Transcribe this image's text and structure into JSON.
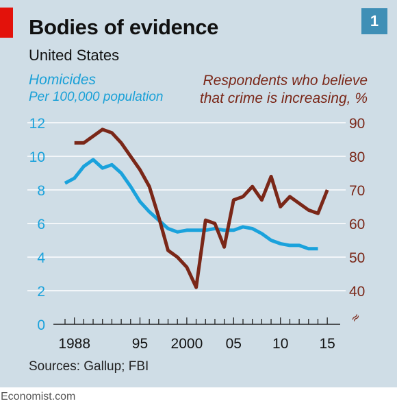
{
  "header": {
    "title": "Bodies of evidence",
    "subtitle": "United States",
    "chart_number": "1"
  },
  "labels": {
    "left_line1": "Homicides",
    "left_line2": "Per 100,000 population",
    "right_line1": "Respondents who believe",
    "right_line2": "that crime is increasing, %"
  },
  "source": "Sources: Gallup; FBI",
  "footer": "Economist.com",
  "colors": {
    "homicides": "#1aa2dc",
    "respondents": "#7a2718",
    "panel_bg": "#cfdde6",
    "brand_red": "#e3120b"
  },
  "chart_data": {
    "type": "line",
    "title": "Bodies of evidence",
    "subtitle": "United States",
    "x_ticks": [
      {
        "value": 1988,
        "label": "1988"
      },
      {
        "value": 1995,
        "label": "95"
      },
      {
        "value": 2000,
        "label": "2000"
      },
      {
        "value": 2005,
        "label": "05"
      },
      {
        "value": 2010,
        "label": "10"
      },
      {
        "value": 2015,
        "label": "15"
      }
    ],
    "xlim": [
      1987,
      2015.5
    ],
    "y_left": {
      "ylim": [
        0,
        12
      ],
      "ticks": [
        "0",
        "2",
        "4",
        "6",
        "8",
        "10",
        "12"
      ]
    },
    "y_right": {
      "ylim": [
        30,
        90
      ],
      "ticks": [
        "40",
        "50",
        "60",
        "70",
        "80",
        "90"
      ],
      "break_symbol": "≈"
    },
    "series": [
      {
        "name": "Homicides",
        "axis": "left",
        "x": [
          1987,
          1988,
          1989,
          1990,
          1991,
          1992,
          1993,
          1994,
          1995,
          1996,
          1997,
          1998,
          1999,
          2000,
          2001,
          2002,
          2003,
          2004,
          2005,
          2006,
          2007,
          2008,
          2009,
          2010,
          2011,
          2012,
          2013,
          2014
        ],
        "values": [
          8.4,
          8.7,
          9.4,
          9.8,
          9.3,
          9.5,
          9.0,
          8.2,
          7.3,
          6.7,
          6.2,
          5.7,
          5.5,
          5.6,
          5.6,
          5.6,
          5.7,
          5.6,
          5.6,
          5.8,
          5.7,
          5.4,
          5.0,
          4.8,
          4.7,
          4.7,
          4.5,
          4.5
        ]
      },
      {
        "name": "Respondents who believe that crime is increasing, %",
        "axis": "right",
        "x": [
          1988,
          1989,
          1990,
          1991,
          1992,
          1993,
          1994,
          1995,
          1996,
          1997,
          1998,
          1999,
          2000,
          2001,
          2002,
          2003,
          2004,
          2005,
          2006,
          2007,
          2008,
          2009,
          2010,
          2011,
          2012,
          2013,
          2014,
          2015
        ],
        "values": [
          84,
          84,
          86,
          88,
          87,
          84,
          80,
          76,
          71,
          62,
          52,
          50,
          47,
          41,
          61,
          60,
          53,
          67,
          68,
          71,
          67,
          74,
          65,
          68,
          66,
          64,
          63,
          70
        ]
      }
    ],
    "grid": true
  }
}
